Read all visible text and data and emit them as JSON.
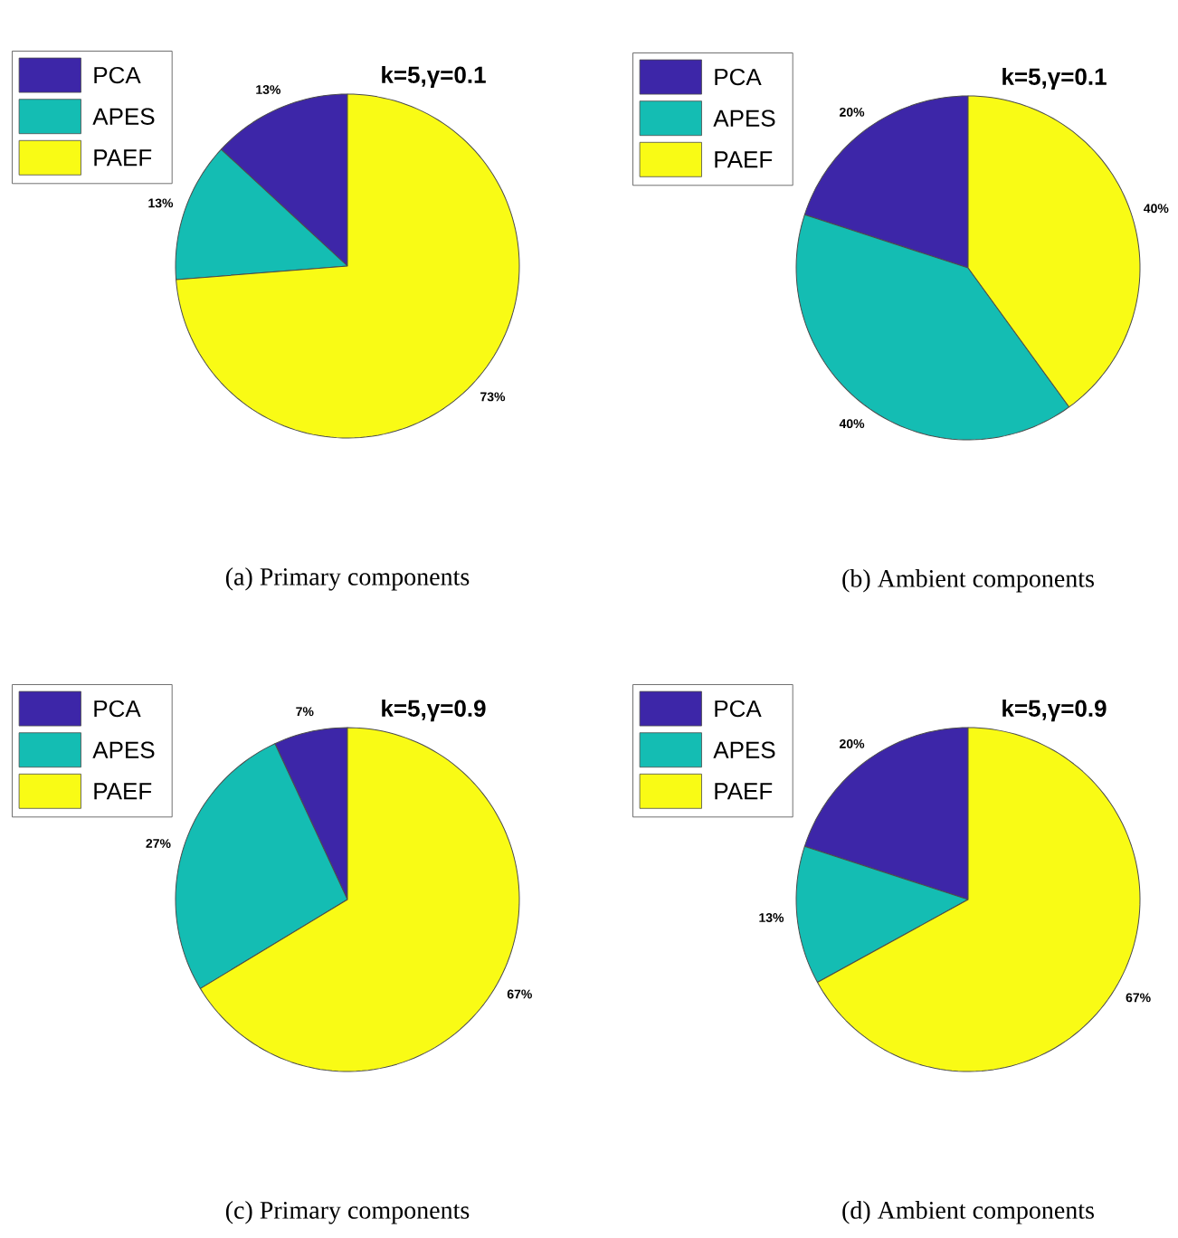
{
  "chart_data": [
    {
      "type": "pie",
      "title": "k=5,γ=0.1",
      "categories": [
        "PCA",
        "APES",
        "PAEF"
      ],
      "values": [
        13,
        13,
        73
      ],
      "colors": [
        "#3d26a8",
        "#14bdb3",
        "#f9fb15"
      ],
      "value_labels": [
        "13%",
        "13%",
        "73%"
      ],
      "legend": "top left",
      "annotations": [
        "(a)  Primary components"
      ]
    },
    {
      "type": "pie",
      "title": "k=5,γ=0.1",
      "categories": [
        "PCA",
        "APES",
        "PAEF"
      ],
      "values": [
        20,
        40,
        40
      ],
      "colors": [
        "#3d26a8",
        "#14bdb3",
        "#f9fb15"
      ],
      "value_labels": [
        "20%",
        "40%",
        "40%"
      ],
      "legend": "top left",
      "annotations": [
        "(b)  Ambient components"
      ]
    },
    {
      "type": "pie",
      "title": "k=5,γ=0.9",
      "categories": [
        "PCA",
        "APES",
        "PAEF"
      ],
      "values": [
        7,
        27,
        67
      ],
      "colors": [
        "#3d26a8",
        "#14bdb3",
        "#f9fb15"
      ],
      "value_labels": [
        "7%",
        "27%",
        "67%"
      ],
      "legend": "top left",
      "annotations": [
        "(c)  Primary components"
      ]
    },
    {
      "type": "pie",
      "title": "k=5,γ=0.9",
      "categories": [
        "PCA",
        "APES",
        "PAEF"
      ],
      "values": [
        20,
        13,
        67
      ],
      "colors": [
        "#3d26a8",
        "#14bdb3",
        "#f9fb15"
      ],
      "value_labels": [
        "20%",
        "13%",
        "67%"
      ],
      "legend": "top left",
      "annotations": [
        "(d)  Ambient components"
      ]
    }
  ]
}
